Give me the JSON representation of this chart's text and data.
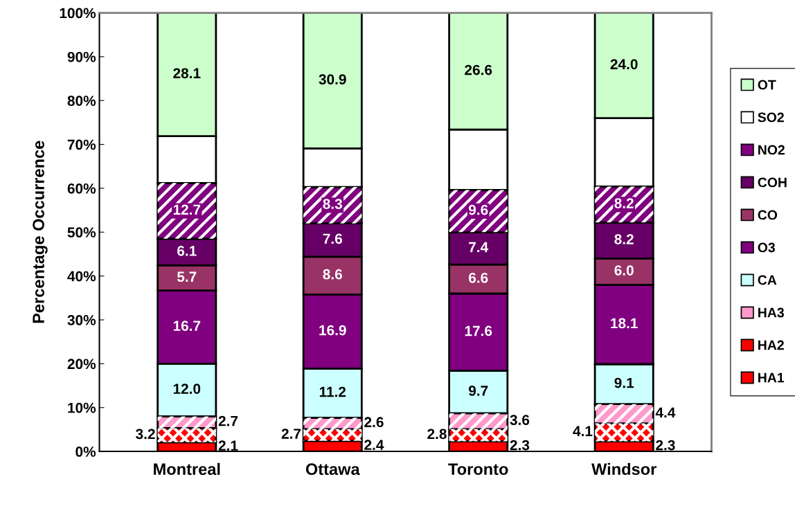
{
  "chart_data": {
    "type": "bar",
    "stacked": true,
    "ylabel": "Percentage Occurrence",
    "categories": [
      "Montreal",
      "Ottawa",
      "Toronto",
      "Windsor"
    ],
    "ylim": [
      0,
      100
    ],
    "yticks": [
      {
        "value": 0,
        "label": "0%"
      },
      {
        "value": 10,
        "label": "10%"
      },
      {
        "value": 20,
        "label": "20%"
      },
      {
        "value": 30,
        "label": "30%"
      },
      {
        "value": 40,
        "label": "40%"
      },
      {
        "value": 50,
        "label": "50%"
      },
      {
        "value": 60,
        "label": "60%"
      },
      {
        "value": 70,
        "label": "70%"
      },
      {
        "value": 80,
        "label": "80%"
      },
      {
        "value": 90,
        "label": "90%"
      },
      {
        "value": 100,
        "label": "100%"
      }
    ],
    "grid": false,
    "legend": "right",
    "series": [
      {
        "name": "HA1",
        "color": "#ff0000",
        "values": [
          2.1,
          2.4,
          2.3,
          2.3
        ],
        "value_labels": [
          "2.1",
          "2.4",
          "2.3",
          "2.3"
        ]
      },
      {
        "name": "HA2",
        "color": "#ff0000",
        "values": [
          3.2,
          2.7,
          2.8,
          4.1
        ],
        "value_labels": [
          "3.2",
          "2.7",
          "2.8",
          "4.1"
        ]
      },
      {
        "name": "HA3",
        "color": "#ff99cc",
        "values": [
          2.7,
          2.6,
          3.6,
          4.4
        ],
        "value_labels": [
          "2.7",
          "2.6",
          "3.6",
          "4.4"
        ]
      },
      {
        "name": "CA",
        "color": "#ccffff",
        "values": [
          12.0,
          11.2,
          9.7,
          9.1
        ],
        "value_labels": [
          "12.0",
          "11.2",
          "9.7",
          "9.1"
        ]
      },
      {
        "name": "O3",
        "color": "#800080",
        "values": [
          16.7,
          16.9,
          17.6,
          18.1
        ],
        "value_labels": [
          "16.7",
          "16.9",
          "17.6",
          "18.1"
        ]
      },
      {
        "name": "CO",
        "color": "#993366",
        "values": [
          5.7,
          8.6,
          6.6,
          6.0
        ],
        "value_labels": [
          "5.7",
          "8.6",
          "6.6",
          "6.0"
        ]
      },
      {
        "name": "COH",
        "color": "#660066",
        "values": [
          6.1,
          7.6,
          7.4,
          8.2
        ],
        "value_labels": [
          "6.1",
          "7.6",
          "7.4",
          "8.2"
        ]
      },
      {
        "name": "NO2",
        "color": "#800080",
        "values": [
          12.7,
          8.3,
          9.6,
          8.2
        ],
        "value_labels": [
          "12.7",
          "8.3",
          "9.6",
          "8.2"
        ]
      },
      {
        "name": "SO2",
        "color": "#ffffff",
        "values": [
          10.7,
          8.8,
          13.8,
          15.6
        ]
      },
      {
        "name": "OT",
        "color": "#ccffcc",
        "values": [
          28.1,
          30.9,
          26.6,
          24.0
        ],
        "value_labels": [
          "28.1",
          "30.9",
          "26.6",
          "24.0"
        ]
      }
    ]
  }
}
